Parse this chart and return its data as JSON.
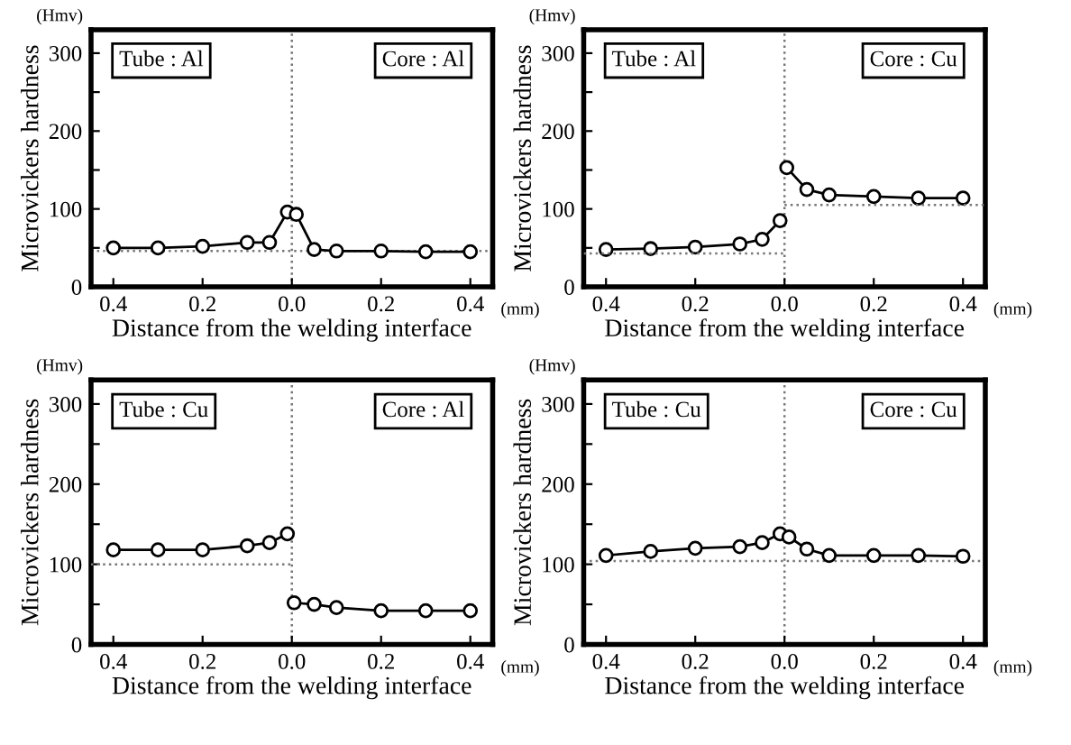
{
  "chart_data": [
    {
      "type": "line",
      "xlabel": "Distance from the welding interface",
      "ylabel": "Microvickers hardness",
      "annotations": [
        "(Hmv)",
        "(mm)",
        "Tube : Al",
        "Core : Al"
      ],
      "xlim": [
        -0.45,
        0.45
      ],
      "ylim": [
        0,
        330
      ],
      "xticks": [
        {
          "value": -0.4,
          "label": "0.4"
        },
        {
          "value": -0.2,
          "label": "0.2"
        },
        {
          "value": 0,
          "label": "0.0"
        },
        {
          "value": 0.2,
          "label": "0.2"
        },
        {
          "value": 0.4,
          "label": "0.4"
        }
      ],
      "yticks": [
        0,
        {
          "value": 50,
          "label": null
        },
        100,
        {
          "value": 150,
          "label": null
        },
        200,
        {
          "value": 250,
          "label": null
        },
        300
      ],
      "grid": false,
      "marker": "circle",
      "line_style": "solid",
      "series": [
        {
          "color": "#000000",
          "x": [
            -0.4,
            -0.3,
            -0.2,
            -0.1,
            -0.05,
            -0.01,
            0.01,
            0.05,
            0.1,
            0.2,
            0.3,
            0.4
          ],
          "values": [
            50,
            50,
            52,
            57,
            57,
            96,
            93,
            48,
            46,
            46,
            45,
            45
          ]
        }
      ],
      "ref_lines": [
        {
          "axis": "x",
          "value": 0,
          "line_style": "dotted",
          "color": "#777777"
        },
        {
          "axis": "y",
          "value": 46,
          "line_style": "dotted",
          "color": "#777777"
        }
      ]
    },
    {
      "type": "line",
      "xlabel": "Distance from the welding interface",
      "ylabel": "Microvickers hardness",
      "annotations": [
        "(Hmv)",
        "(mm)",
        "Tube : Al",
        "Core : Cu"
      ],
      "xlim": [
        -0.45,
        0.45
      ],
      "ylim": [
        0,
        330
      ],
      "xticks": [
        {
          "value": -0.4,
          "label": "0.4"
        },
        {
          "value": -0.2,
          "label": "0.2"
        },
        {
          "value": 0,
          "label": "0.0"
        },
        {
          "value": 0.2,
          "label": "0.2"
        },
        {
          "value": 0.4,
          "label": "0.4"
        }
      ],
      "yticks": [
        0,
        {
          "value": 50,
          "label": null
        },
        100,
        {
          "value": 150,
          "label": null
        },
        200,
        {
          "value": 250,
          "label": null
        },
        300
      ],
      "grid": false,
      "marker": "circle",
      "line_style": "solid",
      "series": [
        {
          "color": "#000000",
          "x": [
            -0.4,
            -0.3,
            -0.2,
            -0.1,
            -0.05,
            -0.01
          ],
          "values": [
            48,
            49,
            51,
            55,
            61,
            85
          ]
        },
        {
          "color": "#000000",
          "x": [
            0.005,
            0.05,
            0.1,
            0.2,
            0.3,
            0.4
          ],
          "values": [
            153,
            125,
            118,
            116,
            114,
            114
          ]
        },
        {
          "type": "line",
          "color": "#777777",
          "marker": "none",
          "line_style": "dotted",
          "x": [
            -0.45,
            0
          ],
          "values": [
            43,
            43
          ]
        },
        {
          "type": "line",
          "color": "#777777",
          "marker": "none",
          "line_style": "dotted",
          "x": [
            0,
            0.45
          ],
          "values": [
            105,
            105
          ]
        }
      ],
      "ref_lines": [
        {
          "axis": "x",
          "value": 0,
          "line_style": "dotted",
          "color": "#777777"
        }
      ]
    },
    {
      "type": "line",
      "xlabel": "Distance from the welding interface",
      "ylabel": "Microvickers hardness",
      "annotations": [
        "(Hmv)",
        "(mm)",
        "Tube : Cu",
        "Core : Al"
      ],
      "xlim": [
        -0.45,
        0.45
      ],
      "ylim": [
        0,
        330
      ],
      "xticks": [
        {
          "value": -0.4,
          "label": "0.4"
        },
        {
          "value": -0.2,
          "label": "0.2"
        },
        {
          "value": 0,
          "label": "0.0"
        },
        {
          "value": 0.2,
          "label": "0.2"
        },
        {
          "value": 0.4,
          "label": "0.4"
        }
      ],
      "yticks": [
        0,
        {
          "value": 50,
          "label": null
        },
        100,
        {
          "value": 150,
          "label": null
        },
        200,
        {
          "value": 250,
          "label": null
        },
        300
      ],
      "grid": false,
      "marker": "circle",
      "line_style": "solid",
      "series": [
        {
          "color": "#000000",
          "x": [
            -0.4,
            -0.3,
            -0.2,
            -0.1,
            -0.05,
            -0.01
          ],
          "values": [
            118,
            118,
            118,
            123,
            127,
            138
          ]
        },
        {
          "color": "#000000",
          "x": [
            0.005,
            0.05,
            0.1,
            0.2,
            0.3,
            0.4
          ],
          "values": [
            52,
            50,
            46,
            42,
            42,
            42
          ]
        },
        {
          "type": "line",
          "color": "#777777",
          "marker": "none",
          "line_style": "dotted",
          "x": [
            -0.45,
            0
          ],
          "values": [
            100,
            100
          ]
        }
      ],
      "ref_lines": [
        {
          "axis": "x",
          "value": 0,
          "line_style": "dotted",
          "color": "#777777"
        }
      ]
    },
    {
      "type": "line",
      "xlabel": "Distance from the welding interface",
      "ylabel": "Microvickers hardness",
      "annotations": [
        "(Hmv)",
        "(mm)",
        "Tube : Cu",
        "Core : Cu"
      ],
      "xlim": [
        -0.45,
        0.45
      ],
      "ylim": [
        0,
        330
      ],
      "xticks": [
        {
          "value": -0.4,
          "label": "0.4"
        },
        {
          "value": -0.2,
          "label": "0.2"
        },
        {
          "value": 0,
          "label": "0.0"
        },
        {
          "value": 0.2,
          "label": "0.2"
        },
        {
          "value": 0.4,
          "label": "0.4"
        }
      ],
      "yticks": [
        0,
        {
          "value": 50,
          "label": null
        },
        100,
        {
          "value": 150,
          "label": null
        },
        200,
        {
          "value": 250,
          "label": null
        },
        300
      ],
      "grid": false,
      "marker": "circle",
      "line_style": "solid",
      "series": [
        {
          "color": "#000000",
          "x": [
            -0.4,
            -0.3,
            -0.2,
            -0.1,
            -0.05,
            -0.01,
            0.01,
            0.05,
            0.1,
            0.2,
            0.3,
            0.4
          ],
          "values": [
            111,
            116,
            120,
            122,
            127,
            138,
            134,
            119,
            111,
            111,
            111,
            110
          ]
        }
      ],
      "ref_lines": [
        {
          "axis": "x",
          "value": 0,
          "line_style": "dotted",
          "color": "#777777"
        },
        {
          "axis": "y",
          "value": 104,
          "line_style": "dotted",
          "color": "#777777"
        }
      ]
    }
  ]
}
